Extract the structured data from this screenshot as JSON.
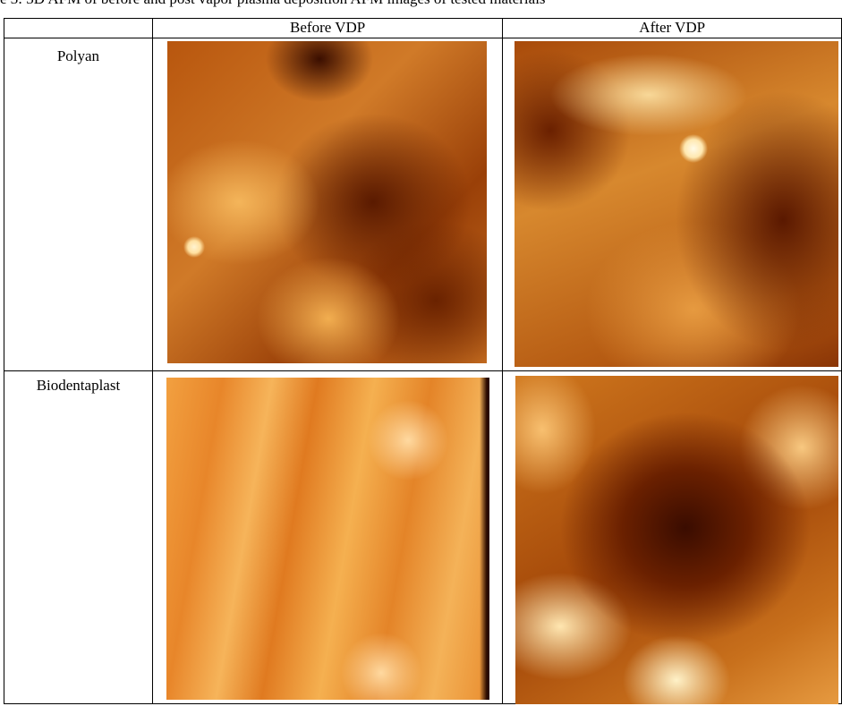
{
  "caption": "e 3: 3D AFM of before and post vapor plasma deposition AFM images of tested materials",
  "table": {
    "header": [
      "Before VDP",
      "After VDP"
    ],
    "rows": [
      {
        "label": "Polyan"
      },
      {
        "label": "Biodentaplast"
      }
    ]
  }
}
